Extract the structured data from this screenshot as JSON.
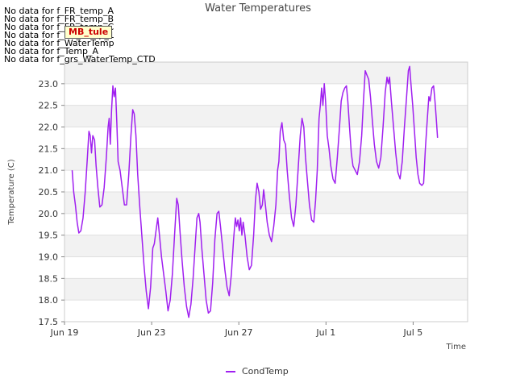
{
  "chart_data": {
    "type": "line",
    "title": "Water Temperatures",
    "xlabel": "Time",
    "ylabel": "Temperature (C)",
    "xlim": [
      0,
      18.5
    ],
    "ylim": [
      17.5,
      23.5
    ],
    "x_ticks": [
      {
        "day": 0,
        "label": "Jun 19"
      },
      {
        "day": 4,
        "label": "Jun 23"
      },
      {
        "day": 8,
        "label": "Jun 27"
      },
      {
        "day": 12,
        "label": "Jul 1"
      },
      {
        "day": 16,
        "label": "Jul 5"
      }
    ],
    "y_ticks": [
      17.5,
      18.0,
      18.5,
      19.0,
      19.5,
      20.0,
      20.5,
      21.0,
      21.5,
      22.0,
      22.5,
      23.0
    ],
    "no_data_messages": [
      "No data for f_FR_temp_A",
      "No data for f_FR_temp_B",
      "No data for f_FR_temp_C",
      "No data for f_FD_Temp_1",
      "No data for f_WaterTemp",
      "No data for f_Temp_A",
      "No data for f_grs_WaterTemp_CTD"
    ],
    "badge": "MB_tule",
    "series": [
      {
        "name": "CondTemp",
        "color": "#a020f0",
        "points": [
          [
            0.35,
            21.0
          ],
          [
            0.42,
            20.5
          ],
          [
            0.5,
            20.2
          ],
          [
            0.58,
            19.8
          ],
          [
            0.66,
            19.55
          ],
          [
            0.75,
            19.6
          ],
          [
            0.85,
            19.9
          ],
          [
            0.95,
            20.5
          ],
          [
            1.05,
            21.3
          ],
          [
            1.12,
            21.9
          ],
          [
            1.18,
            21.8
          ],
          [
            1.24,
            21.4
          ],
          [
            1.3,
            21.8
          ],
          [
            1.38,
            21.7
          ],
          [
            1.45,
            21.1
          ],
          [
            1.53,
            20.6
          ],
          [
            1.62,
            20.15
          ],
          [
            1.72,
            20.2
          ],
          [
            1.82,
            20.6
          ],
          [
            1.92,
            21.3
          ],
          [
            2.0,
            22.0
          ],
          [
            2.05,
            22.2
          ],
          [
            2.1,
            21.6
          ],
          [
            2.16,
            22.4
          ],
          [
            2.22,
            22.95
          ],
          [
            2.28,
            22.7
          ],
          [
            2.34,
            22.9
          ],
          [
            2.4,
            22.1
          ],
          [
            2.46,
            21.2
          ],
          [
            2.55,
            21.0
          ],
          [
            2.65,
            20.6
          ],
          [
            2.75,
            20.2
          ],
          [
            2.85,
            20.2
          ],
          [
            2.95,
            20.9
          ],
          [
            3.05,
            21.8
          ],
          [
            3.13,
            22.4
          ],
          [
            3.2,
            22.3
          ],
          [
            3.28,
            21.8
          ],
          [
            3.36,
            20.9
          ],
          [
            3.45,
            20.2
          ],
          [
            3.55,
            19.5
          ],
          [
            3.65,
            18.8
          ],
          [
            3.75,
            18.2
          ],
          [
            3.85,
            17.8
          ],
          [
            3.95,
            18.3
          ],
          [
            4.05,
            19.2
          ],
          [
            4.12,
            19.3
          ],
          [
            4.2,
            19.6
          ],
          [
            4.28,
            19.9
          ],
          [
            4.36,
            19.5
          ],
          [
            4.45,
            19.0
          ],
          [
            4.55,
            18.6
          ],
          [
            4.65,
            18.2
          ],
          [
            4.75,
            17.75
          ],
          [
            4.85,
            18.0
          ],
          [
            4.95,
            18.6
          ],
          [
            5.05,
            19.5
          ],
          [
            5.15,
            20.35
          ],
          [
            5.22,
            20.2
          ],
          [
            5.3,
            19.6
          ],
          [
            5.4,
            18.9
          ],
          [
            5.5,
            18.3
          ],
          [
            5.6,
            17.85
          ],
          [
            5.7,
            17.6
          ],
          [
            5.8,
            17.9
          ],
          [
            5.9,
            18.5
          ],
          [
            6.0,
            19.3
          ],
          [
            6.08,
            19.9
          ],
          [
            6.16,
            20.0
          ],
          [
            6.22,
            19.8
          ],
          [
            6.3,
            19.2
          ],
          [
            6.4,
            18.6
          ],
          [
            6.5,
            18.0
          ],
          [
            6.6,
            17.7
          ],
          [
            6.7,
            17.75
          ],
          [
            6.8,
            18.4
          ],
          [
            6.9,
            19.4
          ],
          [
            7.0,
            20.0
          ],
          [
            7.08,
            20.05
          ],
          [
            7.16,
            19.7
          ],
          [
            7.26,
            19.2
          ],
          [
            7.36,
            18.7
          ],
          [
            7.46,
            18.3
          ],
          [
            7.56,
            18.1
          ],
          [
            7.66,
            18.6
          ],
          [
            7.76,
            19.4
          ],
          [
            7.84,
            19.9
          ],
          [
            7.9,
            19.7
          ],
          [
            7.96,
            19.85
          ],
          [
            8.02,
            19.6
          ],
          [
            8.08,
            19.9
          ],
          [
            8.14,
            19.5
          ],
          [
            8.2,
            19.8
          ],
          [
            8.28,
            19.5
          ],
          [
            8.38,
            19.0
          ],
          [
            8.48,
            18.7
          ],
          [
            8.58,
            18.8
          ],
          [
            8.68,
            19.5
          ],
          [
            8.76,
            20.3
          ],
          [
            8.84,
            20.7
          ],
          [
            8.92,
            20.5
          ],
          [
            9.0,
            20.1
          ],
          [
            9.08,
            20.2
          ],
          [
            9.14,
            20.55
          ],
          [
            9.2,
            20.3
          ],
          [
            9.3,
            19.8
          ],
          [
            9.4,
            19.5
          ],
          [
            9.5,
            19.35
          ],
          [
            9.6,
            19.7
          ],
          [
            9.7,
            20.2
          ],
          [
            9.78,
            21.0
          ],
          [
            9.84,
            21.2
          ],
          [
            9.9,
            21.9
          ],
          [
            9.98,
            22.1
          ],
          [
            10.06,
            21.7
          ],
          [
            10.14,
            21.6
          ],
          [
            10.22,
            21.0
          ],
          [
            10.32,
            20.4
          ],
          [
            10.42,
            19.9
          ],
          [
            10.52,
            19.7
          ],
          [
            10.62,
            20.2
          ],
          [
            10.72,
            21.0
          ],
          [
            10.82,
            21.8
          ],
          [
            10.9,
            22.2
          ],
          [
            10.98,
            22.0
          ],
          [
            11.06,
            21.3
          ],
          [
            11.14,
            20.8
          ],
          [
            11.24,
            20.2
          ],
          [
            11.34,
            19.85
          ],
          [
            11.44,
            19.8
          ],
          [
            11.52,
            20.3
          ],
          [
            11.6,
            21.0
          ],
          [
            11.68,
            22.2
          ],
          [
            11.74,
            22.5
          ],
          [
            11.8,
            22.9
          ],
          [
            11.86,
            22.5
          ],
          [
            11.92,
            23.0
          ],
          [
            11.98,
            22.6
          ],
          [
            12.06,
            21.8
          ],
          [
            12.14,
            21.5
          ],
          [
            12.22,
            21.1
          ],
          [
            12.32,
            20.8
          ],
          [
            12.42,
            20.7
          ],
          [
            12.52,
            21.3
          ],
          [
            12.62,
            22.0
          ],
          [
            12.7,
            22.6
          ],
          [
            12.78,
            22.8
          ],
          [
            12.86,
            22.9
          ],
          [
            12.94,
            22.95
          ],
          [
            13.0,
            22.6
          ],
          [
            13.08,
            22.0
          ],
          [
            13.16,
            21.4
          ],
          [
            13.24,
            21.1
          ],
          [
            13.34,
            21.0
          ],
          [
            13.44,
            20.9
          ],
          [
            13.54,
            21.2
          ],
          [
            13.64,
            21.8
          ],
          [
            13.72,
            22.6
          ],
          [
            13.8,
            23.3
          ],
          [
            13.88,
            23.2
          ],
          [
            13.96,
            23.1
          ],
          [
            14.04,
            22.7
          ],
          [
            14.12,
            22.2
          ],
          [
            14.22,
            21.6
          ],
          [
            14.32,
            21.2
          ],
          [
            14.42,
            21.05
          ],
          [
            14.52,
            21.3
          ],
          [
            14.62,
            22.0
          ],
          [
            14.72,
            22.8
          ],
          [
            14.8,
            23.15
          ],
          [
            14.86,
            23.0
          ],
          [
            14.92,
            23.15
          ],
          [
            15.0,
            22.6
          ],
          [
            15.1,
            22.0
          ],
          [
            15.2,
            21.4
          ],
          [
            15.3,
            20.95
          ],
          [
            15.4,
            20.8
          ],
          [
            15.5,
            21.2
          ],
          [
            15.6,
            22.0
          ],
          [
            15.7,
            22.7
          ],
          [
            15.78,
            23.3
          ],
          [
            15.84,
            23.4
          ],
          [
            15.9,
            23.0
          ],
          [
            15.98,
            22.5
          ],
          [
            16.06,
            21.9
          ],
          [
            16.14,
            21.3
          ],
          [
            16.22,
            20.9
          ],
          [
            16.3,
            20.7
          ],
          [
            16.4,
            20.65
          ],
          [
            16.48,
            20.7
          ],
          [
            16.56,
            21.5
          ],
          [
            16.64,
            22.1
          ],
          [
            16.72,
            22.7
          ],
          [
            16.78,
            22.6
          ],
          [
            16.86,
            22.9
          ],
          [
            16.94,
            22.95
          ],
          [
            17.0,
            22.6
          ],
          [
            17.06,
            22.2
          ],
          [
            17.12,
            21.75
          ]
        ]
      }
    ]
  }
}
